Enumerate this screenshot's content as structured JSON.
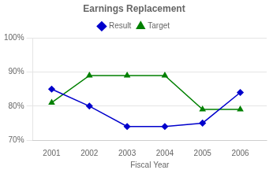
{
  "chart_data": {
    "type": "line",
    "title": "Earnings Replacement",
    "x_label": "Fiscal Year",
    "x": [
      2001,
      2002,
      2003,
      2004,
      2005,
      2006
    ],
    "series": [
      {
        "name": "Result",
        "color": "#0000CC",
        "marker": "diamond",
        "values": [
          0.85,
          0.8,
          0.74,
          0.74,
          0.75,
          0.84
        ]
      },
      {
        "name": "Target",
        "color": "#008000",
        "marker": "triangle",
        "values": [
          0.81,
          0.89,
          0.89,
          0.89,
          0.79,
          0.79
        ]
      }
    ],
    "xlim": [
      2000.5,
      2006.7
    ],
    "xticks": [
      2001,
      2002,
      2003,
      2004,
      2005,
      2006
    ],
    "ylim": [
      0.7,
      1.0
    ],
    "yticks": [
      {
        "value": 0.7,
        "label": "70%"
      },
      {
        "value": 0.8,
        "label": "80%"
      },
      {
        "value": 0.9,
        "label": "90%"
      },
      {
        "value": 1.0,
        "label": "100%"
      }
    ],
    "grid": "y",
    "legend": "top"
  }
}
